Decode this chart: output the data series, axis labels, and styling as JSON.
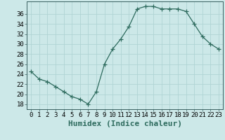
{
  "x": [
    0,
    1,
    2,
    3,
    4,
    5,
    6,
    7,
    8,
    9,
    10,
    11,
    12,
    13,
    14,
    15,
    16,
    17,
    18,
    19,
    20,
    21,
    22,
    23
  ],
  "y": [
    24.5,
    23,
    22.5,
    21.5,
    20.5,
    19.5,
    19,
    18,
    20.5,
    26,
    29,
    31,
    33.5,
    37,
    37.5,
    37.5,
    37,
    37,
    37,
    36.5,
    34,
    31.5,
    30,
    29
  ],
  "line_color": "#2e6b5e",
  "marker": "+",
  "marker_size": 4,
  "bg_color": "#cce8e8",
  "grid_color": "#b0d4d4",
  "xlabel": "Humidex (Indice chaleur)",
  "xlim": [
    -0.5,
    23.5
  ],
  "ylim": [
    17,
    38.5
  ],
  "yticks": [
    18,
    20,
    22,
    24,
    26,
    28,
    30,
    32,
    34,
    36
  ],
  "xtick_labels": [
    "0",
    "1",
    "2",
    "3",
    "4",
    "5",
    "6",
    "7",
    "8",
    "9",
    "10",
    "11",
    "12",
    "13",
    "14",
    "15",
    "16",
    "17",
    "18",
    "19",
    "20",
    "21",
    "22",
    "23"
  ],
  "xlabel_fontsize": 8,
  "tick_fontsize": 6.5
}
